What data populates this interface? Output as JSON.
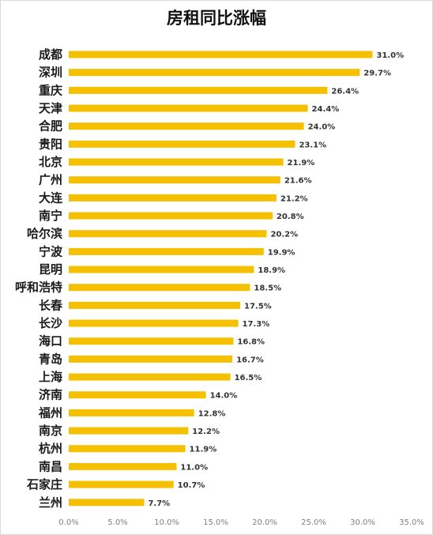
{
  "chart_data": {
    "type": "bar",
    "orientation": "horizontal",
    "title": "房租同比涨幅",
    "xlabel": "",
    "ylabel": "",
    "categories": [
      "成都",
      "深圳",
      "重庆",
      "天津",
      "合肥",
      "贵阳",
      "北京",
      "广州",
      "大连",
      "南宁",
      "哈尔滨",
      "宁波",
      "昆明",
      "呼和浩特",
      "长春",
      "长沙",
      "海口",
      "青岛",
      "上海",
      "济南",
      "福州",
      "南京",
      "杭州",
      "南昌",
      "石家庄",
      "兰州"
    ],
    "values": [
      31.0,
      29.7,
      26.4,
      24.4,
      24.0,
      23.1,
      21.9,
      21.6,
      21.2,
      20.8,
      20.2,
      19.9,
      18.9,
      18.5,
      17.5,
      17.3,
      16.8,
      16.7,
      16.5,
      14.0,
      12.8,
      12.2,
      11.9,
      11.0,
      10.7,
      7.7
    ],
    "data_labels": [
      "31.0%",
      "29.7%",
      "26.4%",
      "24.4%",
      "24.0%",
      "23.1%",
      "21.9%",
      "21.6%",
      "21.2%",
      "20.8%",
      "20.2%",
      "19.9%",
      "18.9%",
      "18.5%",
      "17.5%",
      "17.3%",
      "16.8%",
      "16.7%",
      "16.5%",
      "14.0%",
      "12.8%",
      "12.2%",
      "11.9%",
      "11.0%",
      "10.7%",
      "7.7%"
    ],
    "xlim": [
      0,
      35
    ],
    "x_ticks": [
      "0.0%",
      "5.0%",
      "10.0%",
      "15.0%",
      "20.0%",
      "25.0%",
      "30.0%",
      "35.0%"
    ],
    "grid": false,
    "legend": "none",
    "bar_color": "#F5C000"
  }
}
